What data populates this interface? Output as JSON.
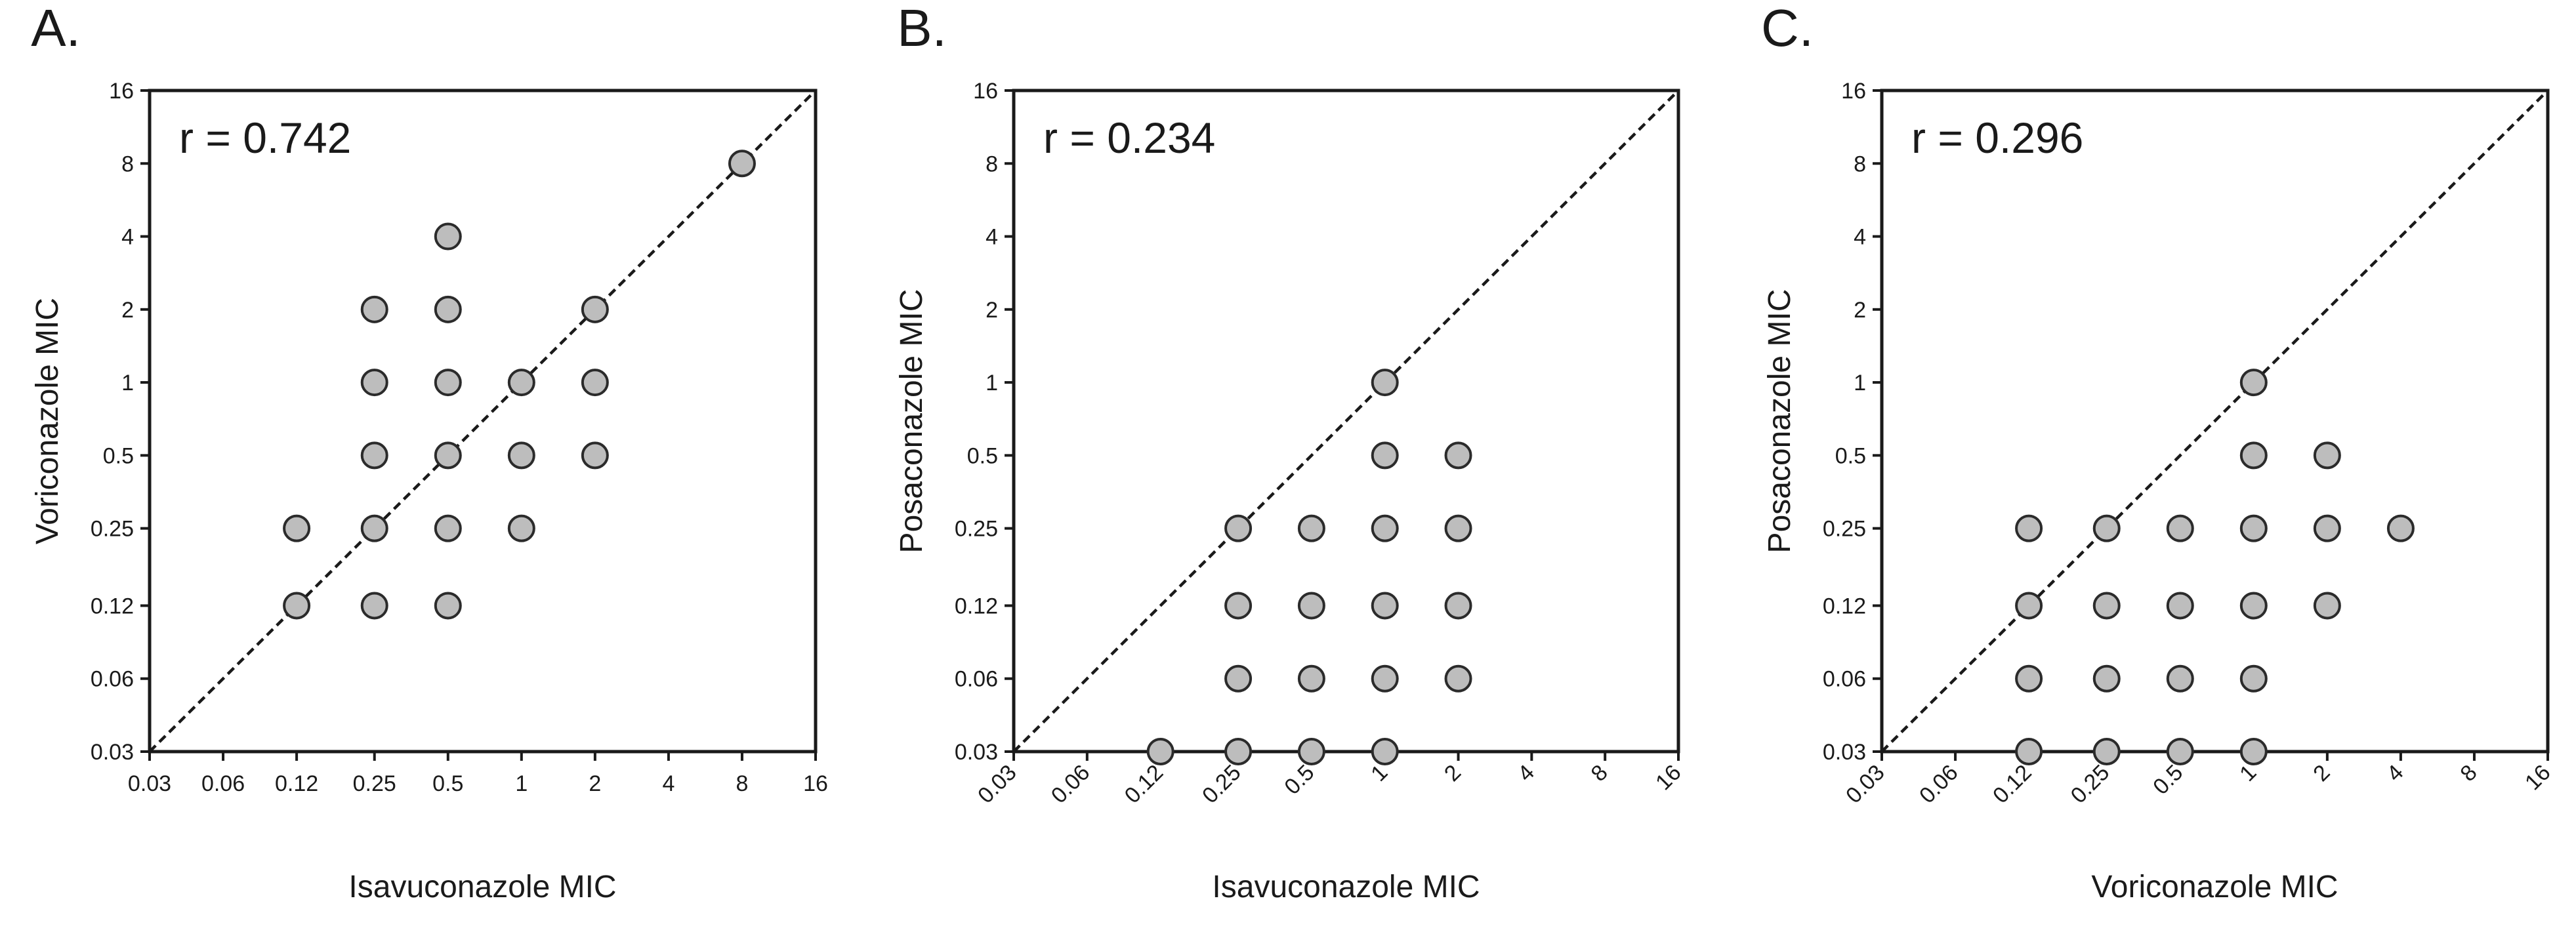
{
  "colors": {
    "point_fill": "#bdbdbd",
    "point_stroke": "#2b2b2b",
    "axis": "#1a1a1a",
    "identity_line": "#1a1a1a"
  },
  "chart_data": [
    {
      "type": "scatter",
      "panel_label": "A.",
      "annotation": "r = 0.742",
      "xlabel": "Isavuconazole MIC",
      "ylabel": "Voriconazole MIC",
      "x_tick_rotated": false,
      "scale": "log2",
      "xlim": [
        0.03,
        16
      ],
      "ylim": [
        0.03,
        16
      ],
      "x_ticks": [
        0.03,
        0.06,
        0.12,
        0.25,
        0.5,
        1,
        2,
        4,
        8,
        16
      ],
      "y_ticks": [
        0.03,
        0.06,
        0.12,
        0.25,
        0.5,
        1,
        2,
        4,
        8,
        16
      ],
      "reference_line": "y = x",
      "points": [
        {
          "x": 8,
          "y": 8
        },
        {
          "x": 0.5,
          "y": 4
        },
        {
          "x": 0.25,
          "y": 2
        },
        {
          "x": 0.5,
          "y": 2
        },
        {
          "x": 2,
          "y": 2
        },
        {
          "x": 0.25,
          "y": 1
        },
        {
          "x": 0.5,
          "y": 1
        },
        {
          "x": 1,
          "y": 1
        },
        {
          "x": 2,
          "y": 1
        },
        {
          "x": 0.25,
          "y": 0.5
        },
        {
          "x": 0.5,
          "y": 0.5
        },
        {
          "x": 1,
          "y": 0.5
        },
        {
          "x": 2,
          "y": 0.5
        },
        {
          "x": 0.12,
          "y": 0.25
        },
        {
          "x": 0.25,
          "y": 0.25
        },
        {
          "x": 0.5,
          "y": 0.25
        },
        {
          "x": 1,
          "y": 0.25
        },
        {
          "x": 0.12,
          "y": 0.12
        },
        {
          "x": 0.25,
          "y": 0.12
        },
        {
          "x": 0.5,
          "y": 0.12
        }
      ]
    },
    {
      "type": "scatter",
      "panel_label": "B.",
      "annotation": "r = 0.234",
      "xlabel": "Isavuconazole MIC",
      "ylabel": "Posaconazole MIC",
      "x_tick_rotated": true,
      "scale": "log2",
      "xlim": [
        0.03,
        16
      ],
      "ylim": [
        0.03,
        16
      ],
      "x_ticks": [
        0.03,
        0.06,
        0.12,
        0.25,
        0.5,
        1,
        2,
        4,
        8,
        16
      ],
      "y_ticks": [
        0.03,
        0.06,
        0.12,
        0.25,
        0.5,
        1,
        2,
        4,
        8,
        16
      ],
      "reference_line": "y = x",
      "points": [
        {
          "x": 1,
          "y": 1
        },
        {
          "x": 1,
          "y": 0.5
        },
        {
          "x": 2,
          "y": 0.5
        },
        {
          "x": 0.25,
          "y": 0.25
        },
        {
          "x": 0.5,
          "y": 0.25
        },
        {
          "x": 1,
          "y": 0.25
        },
        {
          "x": 2,
          "y": 0.25
        },
        {
          "x": 0.25,
          "y": 0.12
        },
        {
          "x": 0.5,
          "y": 0.12
        },
        {
          "x": 1,
          "y": 0.12
        },
        {
          "x": 2,
          "y": 0.12
        },
        {
          "x": 0.25,
          "y": 0.06
        },
        {
          "x": 0.5,
          "y": 0.06
        },
        {
          "x": 1,
          "y": 0.06
        },
        {
          "x": 2,
          "y": 0.06
        },
        {
          "x": 0.12,
          "y": 0.03
        },
        {
          "x": 0.25,
          "y": 0.03
        },
        {
          "x": 0.5,
          "y": 0.03
        },
        {
          "x": 1,
          "y": 0.03
        }
      ]
    },
    {
      "type": "scatter",
      "panel_label": "C.",
      "annotation": "r = 0.296",
      "xlabel": "Voriconazole MIC",
      "ylabel": "Posaconazole MIC",
      "x_tick_rotated": true,
      "scale": "log2",
      "xlim": [
        0.03,
        16
      ],
      "ylim": [
        0.03,
        16
      ],
      "x_ticks": [
        0.03,
        0.06,
        0.12,
        0.25,
        0.5,
        1,
        2,
        4,
        8,
        16
      ],
      "y_ticks": [
        0.03,
        0.06,
        0.12,
        0.25,
        0.5,
        1,
        2,
        4,
        8,
        16
      ],
      "reference_line": "y = x",
      "points": [
        {
          "x": 1,
          "y": 1
        },
        {
          "x": 1,
          "y": 0.5
        },
        {
          "x": 2,
          "y": 0.5
        },
        {
          "x": 0.12,
          "y": 0.25
        },
        {
          "x": 0.25,
          "y": 0.25
        },
        {
          "x": 0.5,
          "y": 0.25
        },
        {
          "x": 1,
          "y": 0.25
        },
        {
          "x": 2,
          "y": 0.25
        },
        {
          "x": 4,
          "y": 0.25
        },
        {
          "x": 0.12,
          "y": 0.12
        },
        {
          "x": 0.25,
          "y": 0.12
        },
        {
          "x": 0.5,
          "y": 0.12
        },
        {
          "x": 1,
          "y": 0.12
        },
        {
          "x": 2,
          "y": 0.12
        },
        {
          "x": 0.12,
          "y": 0.06
        },
        {
          "x": 0.25,
          "y": 0.06
        },
        {
          "x": 0.5,
          "y": 0.06
        },
        {
          "x": 1,
          "y": 0.06
        },
        {
          "x": 0.12,
          "y": 0.03
        },
        {
          "x": 0.25,
          "y": 0.03
        },
        {
          "x": 0.5,
          "y": 0.03
        },
        {
          "x": 1,
          "y": 0.03
        }
      ]
    }
  ]
}
